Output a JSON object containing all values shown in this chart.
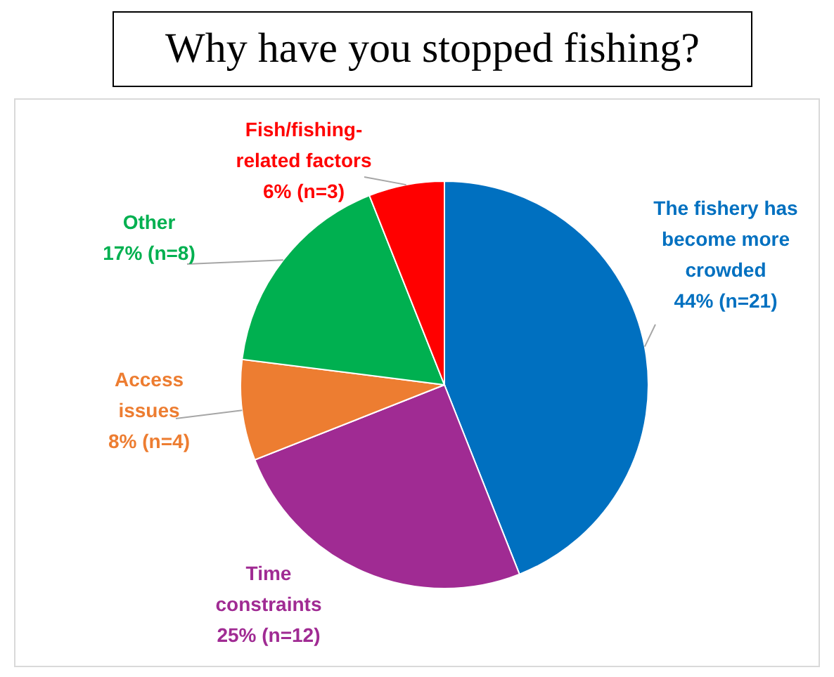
{
  "chart_data": {
    "type": "pie",
    "title": "Why have you stopped fishing?",
    "categories": [
      "The fishery has become more crowded",
      "Time constraints",
      "Access issues",
      "Other",
      "Fish/fishing-related factors"
    ],
    "values": [
      44,
      25,
      8,
      17,
      6
    ],
    "colors": [
      "#0070c0",
      "#a02b93",
      "#ed7d31",
      "#00b050",
      "#ff0000"
    ],
    "value_labels": [
      "44% (n=21)",
      "25% (n=12)",
      "8% (n=4)",
      "17% (n=8)",
      "6% (n=3)"
    ]
  }
}
